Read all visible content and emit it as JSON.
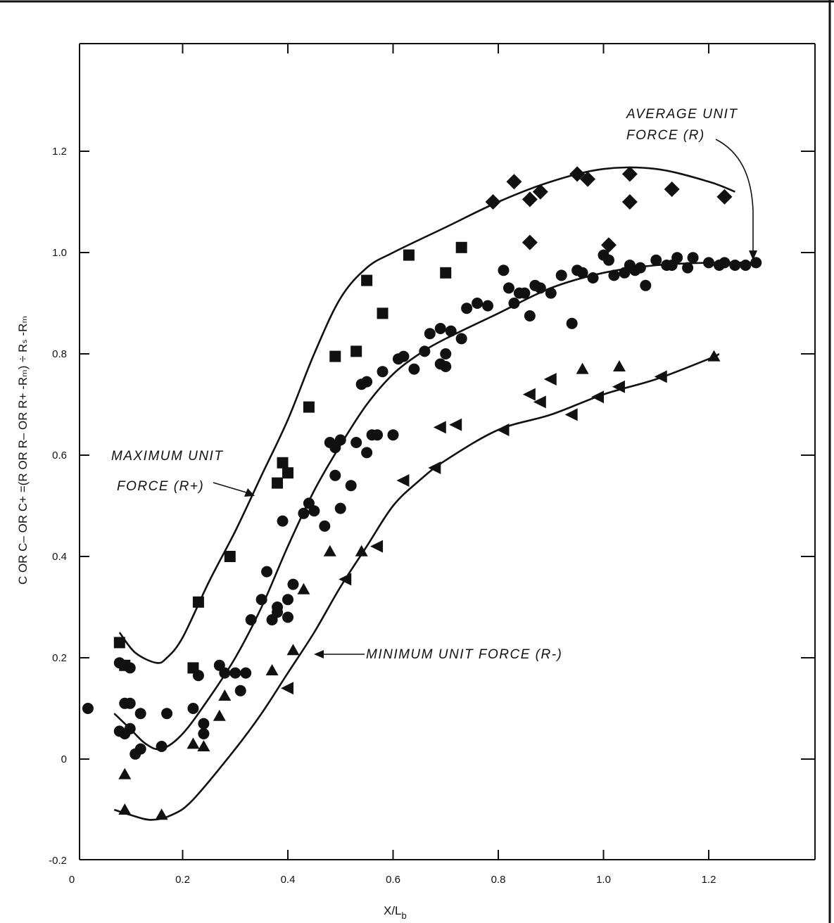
{
  "chart_data": {
    "type": "scatter",
    "title": "",
    "xlabel": "X/L",
    "xlabel_sub": "b",
    "ylabel": "C OR C– OR C+ =(R OR R– OR R+ -Rₘ) ÷ Rₛ -Rₘ",
    "xlim": [
      0,
      1.4
    ],
    "ylim": [
      -0.2,
      1.4
    ],
    "x_ticks": [
      "0",
      "0.2",
      "0.4",
      "0.6",
      "0.8",
      "1.0",
      "1.2"
    ],
    "y_ticks": [
      "-0.2",
      "0",
      "0.2",
      "0.4",
      "0.6",
      "0.8",
      "1.0",
      "1.2"
    ],
    "grid": false,
    "curves": [
      {
        "id": "maximum",
        "label_lines": [
          "MAXIMUM UNIT",
          "FORCE (R+)"
        ],
        "points": [
          [
            0.08,
            0.25
          ],
          [
            0.11,
            0.21
          ],
          [
            0.15,
            0.19
          ],
          [
            0.17,
            0.2
          ],
          [
            0.2,
            0.24
          ],
          [
            0.25,
            0.35
          ],
          [
            0.3,
            0.45
          ],
          [
            0.35,
            0.56
          ],
          [
            0.4,
            0.67
          ],
          [
            0.45,
            0.8
          ],
          [
            0.5,
            0.91
          ],
          [
            0.55,
            0.97
          ],
          [
            0.6,
            1.0
          ],
          [
            0.7,
            1.05
          ],
          [
            0.8,
            1.1
          ],
          [
            0.9,
            1.14
          ],
          [
            1.0,
            1.165
          ],
          [
            1.1,
            1.165
          ],
          [
            1.2,
            1.14
          ],
          [
            1.25,
            1.12
          ]
        ]
      },
      {
        "id": "average",
        "label_lines": [
          "AVERAGE UNIT",
          "FORCE (R)"
        ],
        "points": [
          [
            0.07,
            0.09
          ],
          [
            0.1,
            0.06
          ],
          [
            0.13,
            0.03
          ],
          [
            0.16,
            0.02
          ],
          [
            0.2,
            0.05
          ],
          [
            0.25,
            0.12
          ],
          [
            0.3,
            0.2
          ],
          [
            0.35,
            0.3
          ],
          [
            0.4,
            0.42
          ],
          [
            0.45,
            0.53
          ],
          [
            0.5,
            0.62
          ],
          [
            0.55,
            0.7
          ],
          [
            0.6,
            0.76
          ],
          [
            0.65,
            0.8
          ],
          [
            0.7,
            0.83
          ],
          [
            0.8,
            0.88
          ],
          [
            0.9,
            0.93
          ],
          [
            1.0,
            0.96
          ],
          [
            1.1,
            0.975
          ],
          [
            1.2,
            0.98
          ],
          [
            1.3,
            0.98
          ]
        ]
      },
      {
        "id": "minimum",
        "label_lines": [
          "MINIMUM UNIT FORCE (R-)"
        ],
        "points": [
          [
            0.07,
            -0.1
          ],
          [
            0.1,
            -0.11
          ],
          [
            0.14,
            -0.12
          ],
          [
            0.18,
            -0.11
          ],
          [
            0.22,
            -0.08
          ],
          [
            0.3,
            0.02
          ],
          [
            0.35,
            0.09
          ],
          [
            0.4,
            0.17
          ],
          [
            0.45,
            0.25
          ],
          [
            0.5,
            0.34
          ],
          [
            0.55,
            0.42
          ],
          [
            0.6,
            0.5
          ],
          [
            0.65,
            0.55
          ],
          [
            0.7,
            0.59
          ],
          [
            0.8,
            0.65
          ],
          [
            0.9,
            0.68
          ],
          [
            1.0,
            0.72
          ],
          [
            1.1,
            0.75
          ],
          [
            1.2,
            0.79
          ],
          [
            1.22,
            0.8
          ]
        ]
      }
    ],
    "series": [
      {
        "marker": "square",
        "points": [
          [
            0.08,
            0.23
          ],
          [
            0.09,
            0.185
          ],
          [
            0.22,
            0.18
          ],
          [
            0.23,
            0.31
          ],
          [
            0.29,
            0.4
          ],
          [
            0.38,
            0.545
          ],
          [
            0.39,
            0.585
          ],
          [
            0.4,
            0.565
          ],
          [
            0.44,
            0.695
          ],
          [
            0.49,
            0.795
          ],
          [
            0.53,
            0.805
          ],
          [
            0.55,
            0.945
          ],
          [
            0.58,
            0.88
          ],
          [
            0.63,
            0.995
          ],
          [
            0.7,
            0.96
          ],
          [
            0.73,
            1.01
          ]
        ]
      },
      {
        "marker": "diamond",
        "points": [
          [
            0.79,
            1.1
          ],
          [
            0.83,
            1.14
          ],
          [
            0.86,
            1.02
          ],
          [
            0.86,
            1.105
          ],
          [
            0.88,
            1.12
          ],
          [
            0.95,
            1.155
          ],
          [
            0.97,
            1.145
          ],
          [
            1.01,
            1.015
          ],
          [
            1.05,
            1.155
          ],
          [
            1.05,
            1.1
          ],
          [
            1.13,
            1.125
          ],
          [
            1.23,
            1.11
          ]
        ]
      },
      {
        "marker": "circle",
        "points": [
          [
            0.02,
            0.1
          ],
          [
            0.08,
            0.055
          ],
          [
            0.08,
            0.19
          ],
          [
            0.09,
            0.05
          ],
          [
            0.09,
            0.11
          ],
          [
            0.1,
            0.18
          ],
          [
            0.1,
            0.06
          ],
          [
            0.1,
            0.11
          ],
          [
            0.11,
            0.01
          ],
          [
            0.12,
            0.02
          ],
          [
            0.12,
            0.09
          ],
          [
            0.16,
            0.025
          ],
          [
            0.17,
            0.09
          ],
          [
            0.22,
            0.1
          ],
          [
            0.23,
            0.165
          ],
          [
            0.24,
            0.07
          ],
          [
            0.24,
            0.05
          ],
          [
            0.27,
            0.185
          ],
          [
            0.28,
            0.17
          ],
          [
            0.3,
            0.17
          ],
          [
            0.31,
            0.135
          ],
          [
            0.32,
            0.17
          ],
          [
            0.33,
            0.275
          ],
          [
            0.35,
            0.315
          ],
          [
            0.36,
            0.37
          ],
          [
            0.37,
            0.275
          ],
          [
            0.38,
            0.29
          ],
          [
            0.38,
            0.3
          ],
          [
            0.39,
            0.47
          ],
          [
            0.4,
            0.315
          ],
          [
            0.4,
            0.28
          ],
          [
            0.41,
            0.345
          ],
          [
            0.43,
            0.485
          ],
          [
            0.44,
            0.505
          ],
          [
            0.45,
            0.49
          ],
          [
            0.47,
            0.46
          ],
          [
            0.48,
            0.625
          ],
          [
            0.49,
            0.615
          ],
          [
            0.49,
            0.56
          ],
          [
            0.5,
            0.63
          ],
          [
            0.5,
            0.495
          ],
          [
            0.52,
            0.54
          ],
          [
            0.53,
            0.625
          ],
          [
            0.54,
            0.74
          ],
          [
            0.55,
            0.745
          ],
          [
            0.55,
            0.605
          ],
          [
            0.56,
            0.64
          ],
          [
            0.57,
            0.64
          ],
          [
            0.58,
            0.765
          ],
          [
            0.6,
            0.64
          ],
          [
            0.61,
            0.79
          ],
          [
            0.62,
            0.795
          ],
          [
            0.64,
            0.77
          ],
          [
            0.66,
            0.805
          ],
          [
            0.67,
            0.84
          ],
          [
            0.69,
            0.78
          ],
          [
            0.69,
            0.85
          ],
          [
            0.7,
            0.8
          ],
          [
            0.7,
            0.775
          ],
          [
            0.71,
            0.845
          ],
          [
            0.73,
            0.83
          ],
          [
            0.74,
            0.89
          ],
          [
            0.76,
            0.9
          ],
          [
            0.78,
            0.895
          ],
          [
            0.81,
            0.965
          ],
          [
            0.82,
            0.93
          ],
          [
            0.83,
            0.9
          ],
          [
            0.84,
            0.92
          ],
          [
            0.85,
            0.92
          ],
          [
            0.86,
            0.875
          ],
          [
            0.87,
            0.935
          ],
          [
            0.88,
            0.93
          ],
          [
            0.9,
            0.92
          ],
          [
            0.92,
            0.955
          ],
          [
            0.94,
            0.86
          ],
          [
            0.95,
            0.965
          ],
          [
            0.96,
            0.96
          ],
          [
            0.98,
            0.95
          ],
          [
            1.0,
            0.995
          ],
          [
            1.01,
            0.985
          ],
          [
            1.02,
            0.955
          ],
          [
            1.04,
            0.96
          ],
          [
            1.05,
            0.975
          ],
          [
            1.06,
            0.965
          ],
          [
            1.07,
            0.97
          ],
          [
            1.08,
            0.935
          ],
          [
            1.1,
            0.985
          ],
          [
            1.12,
            0.975
          ],
          [
            1.13,
            0.975
          ],
          [
            1.14,
            0.99
          ],
          [
            1.16,
            0.97
          ],
          [
            1.17,
            0.99
          ],
          [
            1.2,
            0.98
          ],
          [
            1.22,
            0.975
          ],
          [
            1.23,
            0.98
          ],
          [
            1.25,
            0.975
          ],
          [
            1.27,
            0.975
          ],
          [
            1.29,
            0.98
          ]
        ]
      },
      {
        "marker": "triangle-up",
        "points": [
          [
            0.09,
            -0.03
          ],
          [
            0.09,
            -0.1
          ],
          [
            0.16,
            -0.11
          ],
          [
            0.22,
            0.03
          ],
          [
            0.24,
            0.025
          ],
          [
            0.27,
            0.085
          ],
          [
            0.28,
            0.125
          ],
          [
            0.37,
            0.175
          ],
          [
            0.41,
            0.215
          ],
          [
            0.43,
            0.335
          ],
          [
            0.48,
            0.41
          ],
          [
            0.54,
            0.41
          ],
          [
            0.96,
            0.77
          ],
          [
            1.03,
            0.775
          ],
          [
            1.21,
            0.795
          ]
        ]
      },
      {
        "marker": "triangle-left",
        "points": [
          [
            0.4,
            0.14
          ],
          [
            0.51,
            0.355
          ],
          [
            0.57,
            0.42
          ],
          [
            0.62,
            0.55
          ],
          [
            0.68,
            0.575
          ],
          [
            0.69,
            0.655
          ],
          [
            0.72,
            0.66
          ],
          [
            0.81,
            0.65
          ],
          [
            0.86,
            0.72
          ],
          [
            0.88,
            0.705
          ],
          [
            0.9,
            0.75
          ],
          [
            0.94,
            0.68
          ],
          [
            0.99,
            0.715
          ],
          [
            1.03,
            0.735
          ],
          [
            1.11,
            0.755
          ]
        ]
      }
    ]
  }
}
